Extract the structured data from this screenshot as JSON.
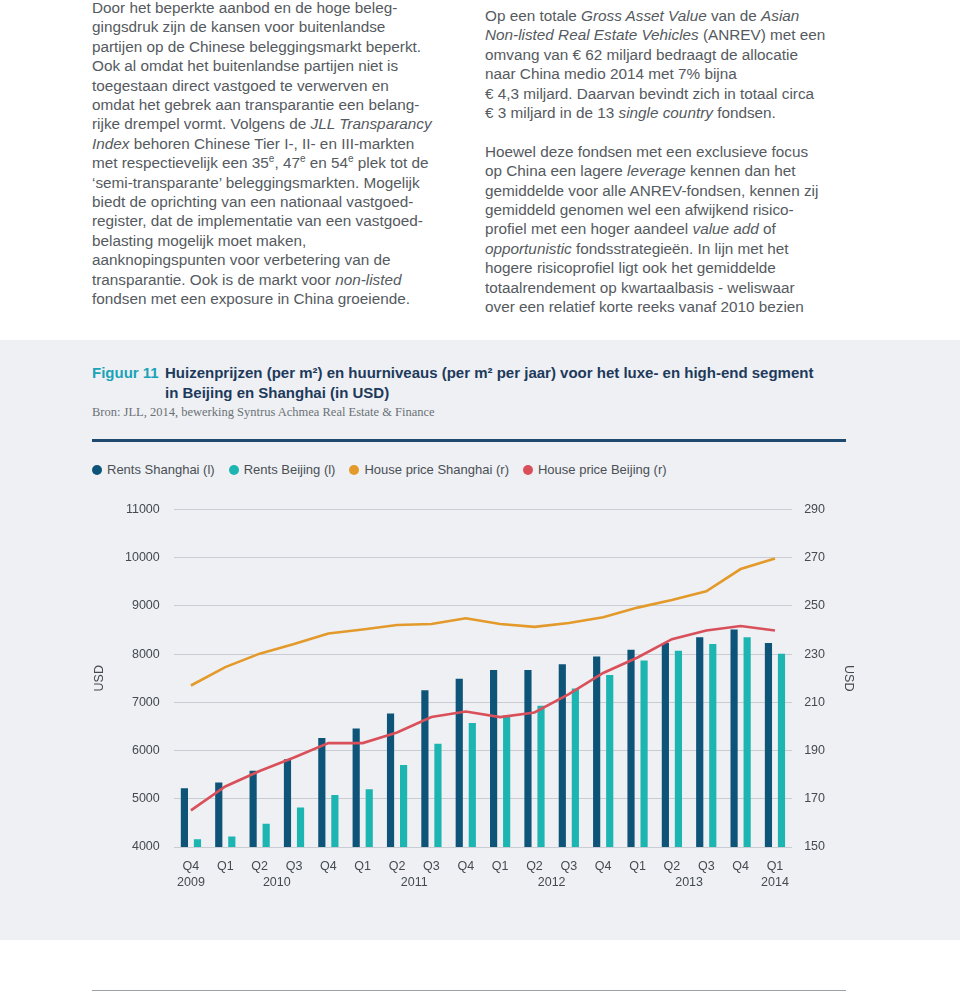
{
  "page": {
    "left_column": [
      [
        "Door het beperkte aanbod en de hoge beleg-"
      ],
      [
        "gingsdruk zijn de kansen voor buitenlandse"
      ],
      [
        "partijen op de Chinese beleggingsmarkt beperkt."
      ],
      [
        "Ook al omdat het buitenlandse partijen niet is"
      ],
      [
        "toegestaan direct vastgoed te verwerven en"
      ],
      [
        "omdat het gebrek aan transparantie een belang-"
      ],
      [
        "rijke drempel vormt. Volgens de ",
        {
          "text": "JLL Transparancy",
          "italic": true
        }
      ],
      [
        {
          "text": "Index",
          "italic": true
        },
        " behoren Chinese Tier I-, II- en III-markten"
      ],
      [
        "met respectievelijk een 35",
        {
          "text": "e",
          "sup": true
        },
        ", 47",
        {
          "text": "e",
          "sup": true
        },
        " en 54",
        {
          "text": "e",
          "sup": true
        },
        " plek tot de"
      ],
      [
        "‘semi-transparante’ beleggingsmarkten. Mogelijk"
      ],
      [
        "biedt de oprichting van een nationaal vastgoed-"
      ],
      [
        "register, dat de implementatie van een vastgoed-"
      ],
      [
        "belasting mogelijk moet maken,"
      ],
      [
        "aanknopingspunten voor verbetering van de"
      ],
      [
        "transparantie. Ook is de markt voor ",
        {
          "text": "non-listed",
          "italic": true
        }
      ],
      [
        "fondsen met een exposure in China groeiende."
      ]
    ],
    "right_column": [
      [
        [
          "Op een totale ",
          {
            "text": "Gross Asset Value",
            "italic": true
          },
          " van de ",
          {
            "text": "Asian",
            "italic": true
          }
        ],
        [
          {
            "text": "Non-listed Real Estate Vehicles",
            "italic": true
          },
          " (ANREV) met een"
        ],
        [
          "omvang van € 62 miljard bedraagt de allocatie"
        ],
        [
          "naar China medio 2014 met 7% bijna"
        ],
        [
          "€ 4,3 miljard. Daarvan bevindt zich in totaal circa"
        ],
        [
          "€ 3 miljard in de 13 ",
          {
            "text": "single country",
            "italic": true
          },
          " fondsen."
        ]
      ],
      [
        [
          "Hoewel deze fondsen met een exclusieve focus"
        ],
        [
          "op China een lagere ",
          {
            "text": "leverage",
            "italic": true
          },
          " kennen dan het"
        ],
        [
          "gemiddelde voor alle ANREV-fondsen, kennen zij"
        ],
        [
          "gemiddeld genomen wel een afwijkend risico-"
        ],
        [
          "profiel met een hoger aandeel ",
          {
            "text": "value add",
            "italic": true
          },
          " of"
        ],
        [
          {
            "text": "opportunistic",
            "italic": true
          },
          " fondsstrategieën. In lijn met het"
        ],
        [
          "hogere risicoprofiel ligt ook het gemiddelde"
        ],
        [
          "totaalrendement op kwartaalbasis - weliswaar"
        ],
        [
          "over een relatief korte reeks vanaf 2010 bezien"
        ]
      ]
    ]
  },
  "figure": {
    "label": "Figuur 11",
    "title": [
      "Huizenprijzen (per m²) en huurniveaus (per m² per jaar) voor het luxe- en high-end segment",
      "in Beijing en Shanghai (in USD)"
    ],
    "source": "Bron: JLL, 2014, bewerking Syntrus Achmea Real Estate & Finance"
  },
  "chart_data": {
    "type": "bar",
    "categories": [
      "Q4",
      "Q1",
      "Q2",
      "Q3",
      "Q4",
      "Q1",
      "Q2",
      "Q3",
      "Q4",
      "Q1",
      "Q2",
      "Q3",
      "Q4",
      "Q1",
      "Q2",
      "Q3",
      "Q4",
      "Q1"
    ],
    "x_groups": [
      {
        "label": "2009",
        "count": 1
      },
      {
        "label": "2010",
        "count": 4
      },
      {
        "label": "2011",
        "count": 4
      },
      {
        "label": "2012",
        "count": 4
      },
      {
        "label": "2013",
        "count": 4
      },
      {
        "label": "2014",
        "count": 1
      }
    ],
    "y_label": "USD",
    "y2_label": "USD",
    "ylim": [
      4000,
      11000
    ],
    "yticks": [
      4000,
      5000,
      6000,
      7000,
      8000,
      9000,
      10000,
      11000
    ],
    "y2lim": [
      150,
      290
    ],
    "y2ticks": [
      150,
      170,
      190,
      210,
      230,
      250,
      270,
      290
    ],
    "grid": true,
    "legend": "top-left",
    "series": [
      {
        "name": "Rents Shanghai (l)",
        "type": "bar",
        "color": "#0d5478",
        "values": [
          5220,
          5340,
          5580,
          5820,
          6260,
          6460,
          6770,
          7250,
          7490,
          7670,
          7670,
          7790,
          7950,
          8090,
          8230,
          8350,
          8510,
          8230
        ]
      },
      {
        "name": "Rents Beijing (l)",
        "type": "bar",
        "color": "#1cb5b2",
        "values": [
          4160,
          4220,
          4480,
          4820,
          5080,
          5200,
          5700,
          6140,
          6570,
          6730,
          6930,
          7290,
          7570,
          7870,
          8070,
          8210,
          8350,
          8010
        ]
      },
      {
        "name": "House price Shanghai (r)",
        "type": "line",
        "axis": "y2",
        "color": "#e39a2b",
        "values": [
          217.0,
          224.6,
          230.2,
          234.2,
          238.6,
          240.2,
          242.1,
          242.5,
          244.9,
          242.5,
          241.3,
          242.9,
          245.3,
          249.3,
          252.5,
          256.1,
          265.3,
          269.7
        ]
      },
      {
        "name": "House price Beijing (r)",
        "type": "line",
        "axis": "y2",
        "color": "#d9505b",
        "values": [
          165.2,
          175.1,
          181.5,
          187.1,
          193.1,
          193.1,
          197.5,
          203.9,
          206.2,
          203.9,
          205.8,
          213.4,
          222.2,
          228.6,
          236.2,
          239.8,
          241.7,
          239.8
        ]
      }
    ]
  }
}
